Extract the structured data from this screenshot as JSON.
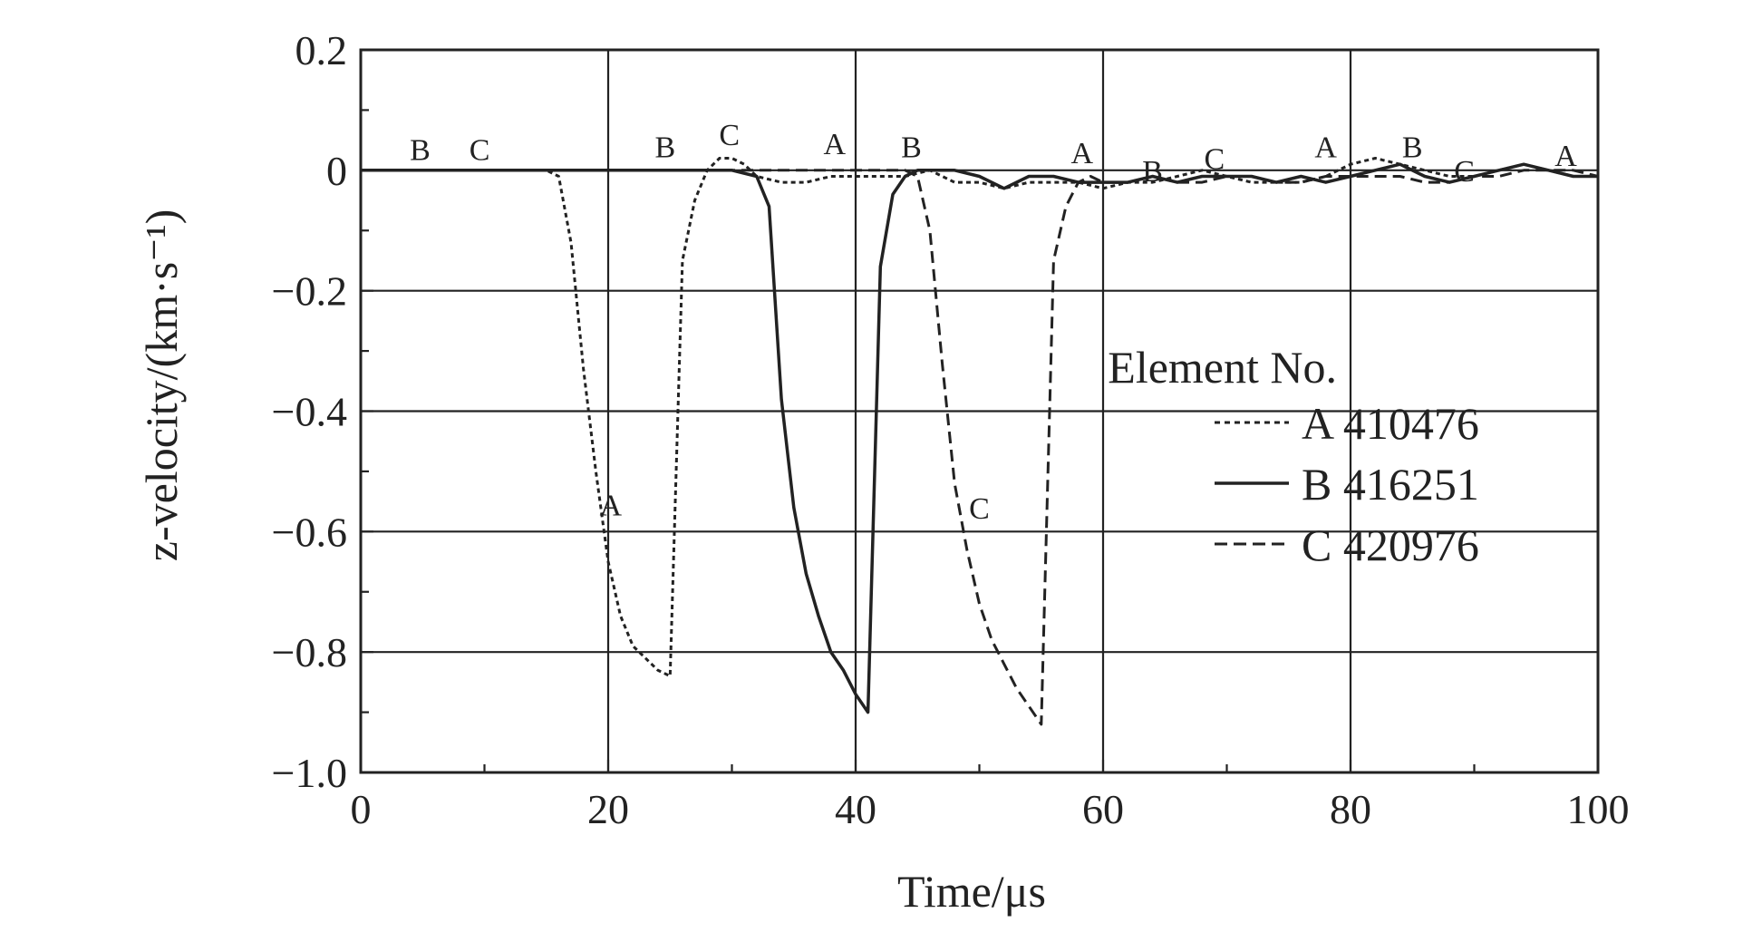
{
  "chart_data": {
    "type": "line",
    "xlabel": "Time/μs",
    "ylabel": "z-velocity/(km·s⁻¹)",
    "xlim": [
      0,
      100
    ],
    "ylim": [
      -1.0,
      0.2
    ],
    "x_ticks": [
      "0",
      "20",
      "40",
      "60",
      "80",
      "100"
    ],
    "y_ticks": [
      "0.2",
      "0",
      "−0.2",
      "−0.4",
      "−0.6",
      "−0.8",
      "−1.0"
    ],
    "grid": true,
    "legend": {
      "title": "Element No.",
      "position": "right",
      "entries": [
        "A 410476",
        "B 416251",
        "C 420976"
      ]
    },
    "series": [
      {
        "name": "A 410476",
        "style": "dotted",
        "x": [
          0,
          15,
          16,
          17,
          18,
          19,
          20,
          21,
          22,
          23,
          24,
          25,
          26,
          27,
          28,
          29,
          30,
          31,
          32,
          34,
          36,
          38,
          40,
          42,
          44,
          46,
          48,
          50,
          52,
          54,
          56,
          58,
          60,
          62,
          64,
          66,
          68,
          70,
          72,
          74,
          76,
          78,
          80,
          82,
          84,
          86,
          88,
          90,
          92,
          94,
          96,
          98,
          100
        ],
        "y": [
          0,
          0,
          -0.01,
          -0.12,
          -0.33,
          -0.5,
          -0.65,
          -0.74,
          -0.79,
          -0.81,
          -0.83,
          -0.84,
          -0.15,
          -0.05,
          0.0,
          0.02,
          0.02,
          0.01,
          -0.01,
          -0.02,
          -0.02,
          -0.01,
          -0.01,
          -0.01,
          -0.01,
          0.0,
          -0.02,
          -0.02,
          -0.03,
          -0.02,
          -0.02,
          -0.02,
          -0.03,
          -0.02,
          -0.02,
          -0.01,
          0.0,
          -0.01,
          -0.02,
          -0.02,
          -0.02,
          -0.01,
          0.01,
          0.02,
          0.01,
          0.0,
          -0.01,
          -0.01,
          0.0,
          0.01,
          0.0,
          -0.01,
          -0.01
        ]
      },
      {
        "name": "B 416251",
        "style": "solid",
        "x": [
          0,
          30,
          32,
          33,
          34,
          35,
          36,
          37,
          38,
          39,
          40,
          41,
          42,
          43,
          44,
          45,
          46,
          48,
          50,
          52,
          54,
          56,
          58,
          60,
          62,
          64,
          66,
          68,
          70,
          72,
          74,
          76,
          78,
          80,
          82,
          84,
          86,
          88,
          90,
          92,
          94,
          96,
          98,
          100
        ],
        "y": [
          0,
          0,
          -0.01,
          -0.06,
          -0.38,
          -0.56,
          -0.67,
          -0.74,
          -0.8,
          -0.83,
          -0.87,
          -0.9,
          -0.16,
          -0.04,
          -0.01,
          0.0,
          0.0,
          0.0,
          -0.01,
          -0.03,
          -0.01,
          -0.01,
          -0.02,
          -0.02,
          -0.02,
          -0.01,
          -0.02,
          -0.01,
          -0.01,
          -0.01,
          -0.02,
          -0.01,
          -0.02,
          -0.01,
          0.0,
          0.01,
          -0.01,
          -0.02,
          -0.01,
          0.0,
          0.01,
          0.0,
          -0.01,
          -0.01
        ]
      },
      {
        "name": "C 420976",
        "style": "dashed",
        "x": [
          0,
          44,
          45,
          46,
          47,
          48,
          49,
          50,
          51,
          52,
          53,
          54,
          55,
          56,
          57,
          58,
          59,
          60,
          62,
          64,
          66,
          68,
          70,
          72,
          74,
          76,
          78,
          80,
          82,
          84,
          86,
          88,
          90,
          92,
          94,
          96,
          98,
          100
        ],
        "y": [
          0,
          0,
          -0.01,
          -0.1,
          -0.32,
          -0.52,
          -0.63,
          -0.72,
          -0.78,
          -0.82,
          -0.86,
          -0.89,
          -0.92,
          -0.15,
          -0.06,
          -0.02,
          -0.01,
          -0.02,
          -0.02,
          -0.01,
          -0.02,
          -0.02,
          -0.01,
          -0.01,
          -0.02,
          -0.02,
          -0.01,
          -0.01,
          -0.01,
          -0.01,
          -0.02,
          -0.02,
          -0.01,
          -0.01,
          0.0,
          0.0,
          0.0,
          -0.01
        ]
      }
    ],
    "annotations": [
      {
        "text": "B",
        "x": 4.8,
        "y": 0.035
      },
      {
        "text": "C",
        "x": 9.6,
        "y": 0.035
      },
      {
        "text": "A",
        "x": 20.2,
        "y": -0.555
      },
      {
        "text": "B",
        "x": 24.6,
        "y": 0.04
      },
      {
        "text": "C",
        "x": 29.8,
        "y": 0.06
      },
      {
        "text": "A",
        "x": 38.3,
        "y": 0.045
      },
      {
        "text": "B",
        "x": 44.5,
        "y": 0.04
      },
      {
        "text": "C",
        "x": 50.0,
        "y": -0.56
      },
      {
        "text": "A",
        "x": 58.3,
        "y": 0.03
      },
      {
        "text": "B",
        "x": 64.0,
        "y": 0.0
      },
      {
        "text": "C",
        "x": 69.0,
        "y": 0.02
      },
      {
        "text": "A",
        "x": 78.0,
        "y": 0.04
      },
      {
        "text": "B",
        "x": 85.0,
        "y": 0.04
      },
      {
        "text": "C",
        "x": 89.2,
        "y": 0.0
      },
      {
        "text": "A",
        "x": 97.4,
        "y": 0.025
      }
    ]
  }
}
